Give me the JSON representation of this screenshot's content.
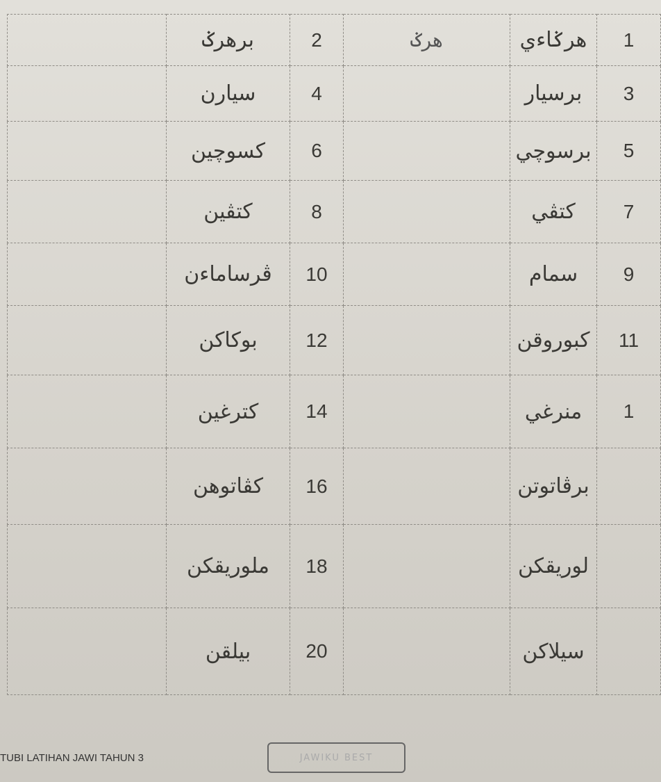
{
  "table": {
    "rows": [
      {
        "number_a": "1",
        "word_a": "هرݢاءي",
        "answer_a": "هرݢ",
        "number_b": "2",
        "word_b": "برهرݢ"
      },
      {
        "number_a": "3",
        "word_a": "برسيار",
        "number_b": "4",
        "word_b": "سيارن"
      },
      {
        "number_a": "5",
        "word_a": "برسوچي",
        "number_b": "6",
        "word_b": "کسوچين"
      },
      {
        "number_a": "7",
        "word_a": "کتڤي",
        "number_b": "8",
        "word_b": "کتڤين"
      },
      {
        "number_a": "9",
        "word_a": "سمام",
        "number_b": "10",
        "word_b": "ڤرساماءن"
      },
      {
        "number_a": "11",
        "word_a": "کبوروقن",
        "number_b": "12",
        "word_b": "بوکاکن"
      },
      {
        "number_a": "1",
        "word_a": "منرغي",
        "number_b": "14",
        "word_b": "کترغين"
      },
      {
        "word_a": "برڤاتوتن",
        "number_b": "16",
        "word_b": "کڤاتوهن"
      },
      {
        "word_a": "لوريقکن",
        "number_b": "18",
        "word_b": "ملوريقکن"
      },
      {
        "word_a": "سيلاکن",
        "number_b": "20",
        "word_b": "بيلقن"
      }
    ]
  },
  "footer": {
    "title": "TUBI LATIHAN JAWI TAHUN 3",
    "badge": "JAWIKU BEST"
  }
}
